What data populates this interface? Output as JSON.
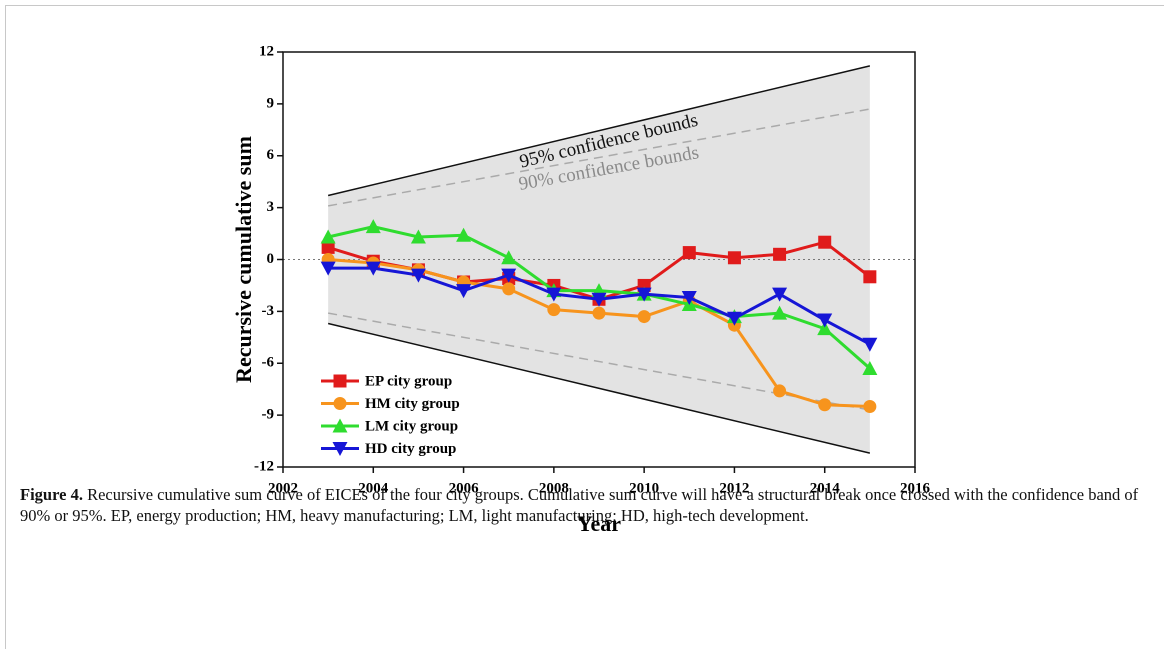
{
  "chart_data": {
    "type": "line",
    "xlabel": "Year",
    "ylabel": "Recursive cumulative sum",
    "x": [
      2003,
      2004,
      2005,
      2006,
      2007,
      2008,
      2009,
      2010,
      2011,
      2012,
      2013,
      2014,
      2015
    ],
    "series": [
      {
        "name": "EP city group",
        "color": "#e01b1b",
        "marker": "square",
        "values": [
          0.7,
          -0.1,
          -0.6,
          -1.3,
          -1.1,
          -1.5,
          -2.3,
          -1.5,
          0.4,
          0.1,
          0.3,
          1.0,
          -1.0
        ]
      },
      {
        "name": "HM city group",
        "color": "#f7941d",
        "marker": "circle",
        "values": [
          0.0,
          -0.2,
          -0.6,
          -1.3,
          -1.7,
          -2.9,
          -3.1,
          -3.3,
          -2.4,
          -3.8,
          -7.6,
          -8.4,
          -8.5
        ]
      },
      {
        "name": "LM city group",
        "color": "#2fdc2f",
        "marker": "triangle-up",
        "values": [
          1.3,
          1.9,
          1.3,
          1.4,
          0.1,
          -1.8,
          -1.8,
          -2.0,
          -2.6,
          -3.3,
          -3.1,
          -4.0,
          -6.3
        ]
      },
      {
        "name": "HD city group",
        "color": "#1616d6",
        "marker": "triangle-down",
        "values": [
          -0.5,
          -0.5,
          -0.9,
          -1.8,
          -0.9,
          -2.0,
          -2.3,
          -2.0,
          -2.2,
          -3.4,
          -2.0,
          -3.5,
          -4.9
        ]
      }
    ],
    "bounds": [
      {
        "label": "95% confidence bounds",
        "x": [
          2003,
          2015
        ],
        "upper": [
          3.7,
          11.2
        ],
        "lower": [
          -3.7,
          -11.2
        ],
        "color": "#111111",
        "dashed": false,
        "fill": "#e3e3e3"
      },
      {
        "label": "90% confidence bounds",
        "x": [
          2003,
          2015
        ],
        "upper": [
          3.1,
          8.7
        ],
        "lower": [
          -3.1,
          -8.7
        ],
        "color": "#aaaaaa",
        "dashed": true
      }
    ],
    "hline": 0,
    "xlim": [
      2002,
      2016
    ],
    "xticks": [
      2002,
      2004,
      2006,
      2008,
      2010,
      2012,
      2014,
      2016
    ],
    "ylim": [
      -12,
      12
    ],
    "yticks": [
      -12,
      -9,
      -6,
      -3,
      0,
      3,
      6,
      9,
      12
    ],
    "legend": "lower left"
  },
  "caption": {
    "label": "Figure 4.",
    "text": " Recursive cumulative sum curve of EICEs of the four city groups. Cumulative sum curve will have a structural break once crossed with the confidence band of 90% or 95%. EP, energy production; HM, heavy manufacturing; LM, light manufacturing; HD, high-tech development."
  }
}
